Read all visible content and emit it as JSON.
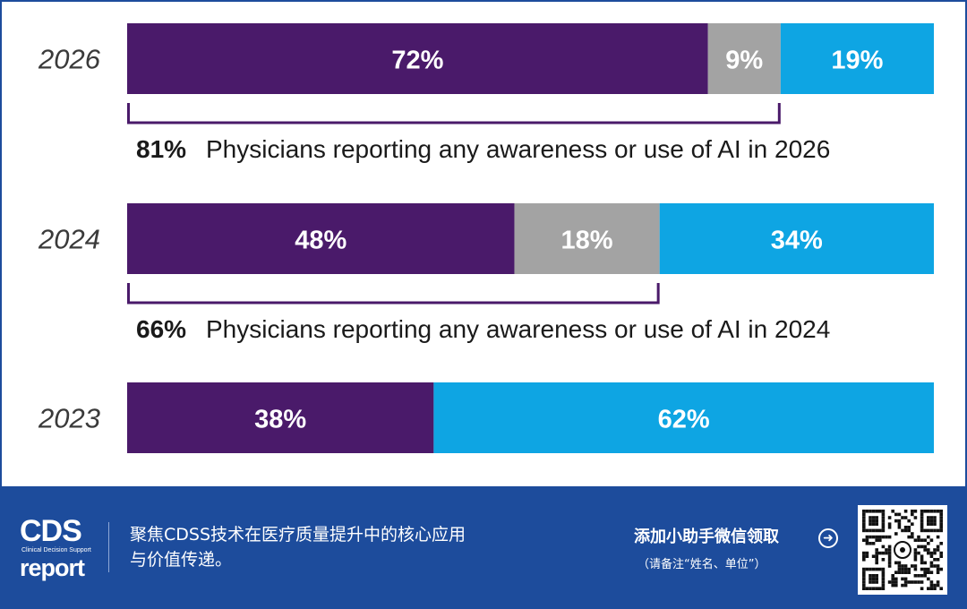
{
  "chart_data": {
    "type": "stacked-bar-horizontal",
    "orientation": "horizontal",
    "xlim": [
      0,
      100
    ],
    "colors": [
      "#4a1a6a",
      "#a3a3a3",
      "#0ea5e3"
    ],
    "categories": [
      "2026",
      "2024",
      "2023"
    ],
    "series": [
      {
        "values": [
          72,
          48,
          38
        ],
        "labels": [
          "72%",
          "48%",
          "38%"
        ]
      },
      {
        "values": [
          9,
          18,
          0
        ],
        "labels": [
          "9%",
          "18%",
          ""
        ]
      },
      {
        "values": [
          19,
          34,
          62
        ],
        "labels": [
          "19%",
          "34%",
          "62%"
        ]
      }
    ],
    "annotations": [
      {
        "category": "2026",
        "bracket_to": 81,
        "value_text": "81%",
        "text": "Physicians reporting any awareness or use of AI in 2026"
      },
      {
        "category": "2024",
        "bracket_to": 66,
        "value_text": "66%",
        "text": "Physicians reporting any awareness or use of AI in 2024"
      }
    ]
  },
  "footer": {
    "logo": {
      "main": "CDS",
      "sub": "Clinical Decision Support",
      "word": "report"
    },
    "slogan_line1": "聚焦CDSS技术在医疗质量提升中的核心应用",
    "slogan_line2": "与价值传递。",
    "cta": "添加小助手微信领取",
    "cta_icon": "arrow-right-circle-icon",
    "cta_note": "（请备注“姓名、单位”）"
  }
}
